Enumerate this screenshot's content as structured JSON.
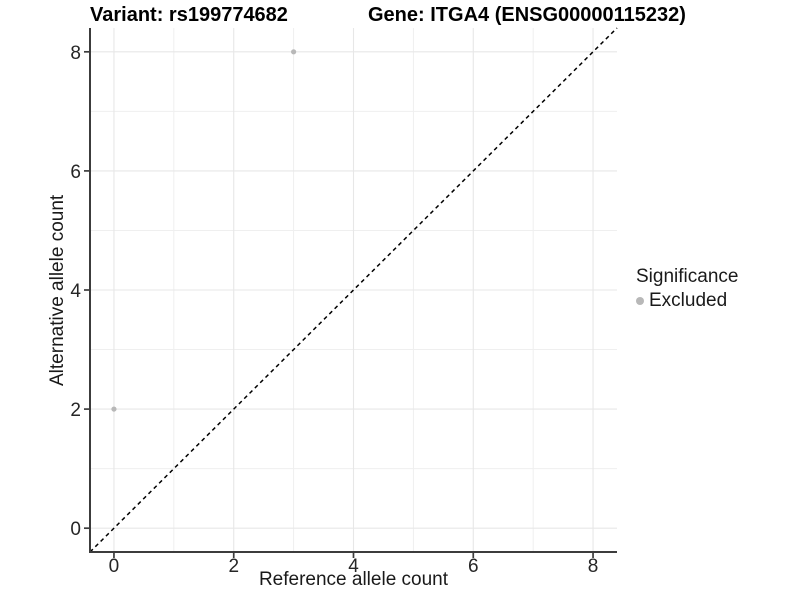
{
  "chart_data": {
    "type": "scatter",
    "title_left": "Variant: rs199774682",
    "title_right": "Gene: ITGA4 (ENSG00000115232)",
    "xlabel": "Reference allele count",
    "ylabel": "Alternative allele count",
    "xlim": [
      -0.4,
      8.4
    ],
    "ylim": [
      -0.4,
      8.4
    ],
    "x_ticks": [
      0,
      2,
      4,
      6,
      8
    ],
    "y_ticks": [
      0,
      2,
      4,
      6,
      8
    ],
    "x_minor_gridlines": [
      1,
      3,
      5,
      7
    ],
    "y_minor_gridlines": [
      1,
      3,
      5,
      7
    ],
    "grid": true,
    "legend_position": "right",
    "series": [
      {
        "name": "Excluded",
        "color": "#b8b8b8",
        "points": [
          {
            "x": 0,
            "y": 2
          },
          {
            "x": 3,
            "y": 8
          }
        ]
      }
    ],
    "reference_line": {
      "kind": "identity y=x",
      "style": "dashed",
      "color": "#000000"
    },
    "legend": {
      "title": "Significance",
      "entries": [
        {
          "label": "Excluded",
          "color": "#b8b8b8"
        }
      ]
    }
  },
  "colors": {
    "background": "#ffffff",
    "grid_major": "#e7e7e7",
    "grid_minor": "#efefef",
    "axis": "#3c3c3c",
    "tick_label": "#262626",
    "text": "#1a1a1a",
    "diagonal": "#000000"
  }
}
